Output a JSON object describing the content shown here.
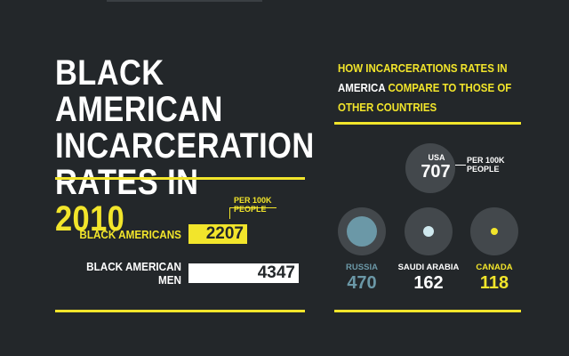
{
  "left": {
    "title_line1": "BLACK AMERICAN",
    "title_line2": "INCARCERATION",
    "title_line3_prefix": "RATES IN ",
    "title_year": "2010",
    "per_note": "PER 100K PEOPLE",
    "rows": [
      {
        "label": "BLACK AMERICANS",
        "value": "2207"
      },
      {
        "label": "BLACK AMERICAN MEN",
        "value": "4347"
      }
    ]
  },
  "right": {
    "subtitle_part1": "HOW INCARCERATIONS RATES IN ",
    "subtitle_highlight": "AMERICA",
    "subtitle_part2": " COMPARE TO THOSE OF OTHER COUNTRIES",
    "usa": {
      "name": "USA",
      "value": "707",
      "per_note": "PER 100K PEOPLE"
    },
    "countries": [
      {
        "name": "RUSSIA",
        "value": "470",
        "color": "#6b98a7"
      },
      {
        "name": "SAUDI ARABIA",
        "value": "162",
        "color": "#cfe8ee"
      },
      {
        "name": "CANADA",
        "value": "118",
        "color": "#f2e52b"
      }
    ]
  },
  "colors": {
    "background": "#23272a",
    "accent": "#f2e52b",
    "circle": "#43484c"
  }
}
